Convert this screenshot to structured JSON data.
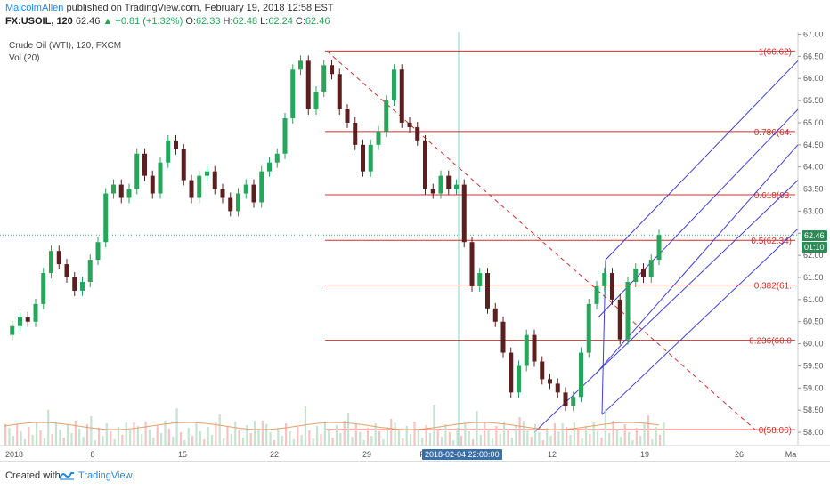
{
  "header": {
    "author": "MalcolmAllen",
    "published": "published on TradingView.com, February 19, 2018 12:58 EST",
    "symbol": "FX:USOIL, 120",
    "last": "62.46",
    "change": "+0.81 (+1.32%)",
    "open_label": "O:",
    "open": "62.33",
    "high_label": "H:",
    "high": "62.48",
    "low_label": "L:",
    "low": "62.24",
    "close_label": "C:",
    "close": "62.46"
  },
  "legend": {
    "title": "Crude Oil (WTI), 120, FXCM",
    "volume": "Vol (20)"
  },
  "price_tag": {
    "value": "62.46",
    "countdown": "01:10"
  },
  "crosshair_time": "2018-02-04 22:00:00",
  "footer": {
    "created": "Created with",
    "brand": "TradingView"
  },
  "colors": {
    "bull": "#26a65b",
    "bear": "#5b1f1f",
    "fib": "#d32f2f",
    "pitchfork": "#3f3fd6",
    "trend": "#d32f2f",
    "crosshair": "#7fd3d3",
    "volume_ma": "#e6a06b",
    "accent": "#1e88e5"
  },
  "chart_data": {
    "type": "candlestick",
    "ylim": [
      57.7,
      67.05
    ],
    "y_ticks": [
      "67.00",
      "66.50",
      "66.00",
      "65.50",
      "65.00",
      "64.50",
      "64.00",
      "63.50",
      "63.00",
      "62.50",
      "62.00",
      "61.50",
      "61.00",
      "60.50",
      "60.00",
      "59.50",
      "59.00",
      "58.50",
      "58.00"
    ],
    "x_ticks": [
      "2018",
      "8",
      "15",
      "22",
      "29",
      "F",
      "12",
      "19",
      "26",
      "Ma"
    ],
    "fib_levels": [
      {
        "label": "1(66.62)",
        "value": 66.62
      },
      {
        "label": "0.786(64.",
        "value": 64.8
      },
      {
        "label": "0.618(63.",
        "value": 63.37
      },
      {
        "label": "0.5(62.34)",
        "value": 62.34
      },
      {
        "label": "0.382(61.",
        "value": 61.33
      },
      {
        "label": "0.236(60.0",
        "value": 60.08
      },
      {
        "label": "0(58.06)",
        "value": 58.06
      }
    ],
    "close_path": [
      [
        0,
        60.2
      ],
      [
        1,
        60.4
      ],
      [
        2,
        60.6
      ],
      [
        3,
        60.5
      ],
      [
        4,
        60.9
      ],
      [
        5,
        61.6
      ],
      [
        6,
        62.1
      ],
      [
        7,
        61.8
      ],
      [
        8,
        61.5
      ],
      [
        9,
        61.2
      ],
      [
        10,
        61.4
      ],
      [
        11,
        61.9
      ],
      [
        12,
        62.3
      ],
      [
        13,
        63.4
      ],
      [
        14,
        63.6
      ],
      [
        15,
        63.3
      ],
      [
        16,
        63.5
      ],
      [
        17,
        64.3
      ],
      [
        18,
        63.8
      ],
      [
        19,
        63.4
      ],
      [
        20,
        64.1
      ],
      [
        21,
        64.6
      ],
      [
        22,
        64.4
      ],
      [
        23,
        63.7
      ],
      [
        24,
        63.3
      ],
      [
        25,
        63.8
      ],
      [
        26,
        63.9
      ],
      [
        27,
        63.5
      ],
      [
        28,
        63.3
      ],
      [
        29,
        63.0
      ],
      [
        30,
        63.4
      ],
      [
        31,
        63.6
      ],
      [
        32,
        63.2
      ],
      [
        33,
        63.9
      ],
      [
        34,
        64.1
      ],
      [
        35,
        64.3
      ],
      [
        36,
        65.1
      ],
      [
        37,
        66.2
      ],
      [
        38,
        66.4
      ],
      [
        39,
        65.3
      ],
      [
        40,
        65.7
      ],
      [
        41,
        66.3
      ],
      [
        42,
        66.1
      ],
      [
        43,
        65.3
      ],
      [
        44,
        65.0
      ],
      [
        45,
        64.5
      ],
      [
        46,
        63.9
      ],
      [
        47,
        64.5
      ],
      [
        48,
        64.8
      ],
      [
        49,
        65.5
      ],
      [
        50,
        66.2
      ],
      [
        51,
        65.0
      ],
      [
        52,
        64.9
      ],
      [
        53,
        64.6
      ],
      [
        54,
        63.5
      ],
      [
        55,
        63.4
      ],
      [
        56,
        63.8
      ],
      [
        57,
        63.5
      ],
      [
        58,
        63.6
      ],
      [
        59,
        62.3
      ],
      [
        60,
        61.3
      ],
      [
        61,
        61.6
      ],
      [
        62,
        60.8
      ],
      [
        63,
        60.5
      ],
      [
        64,
        59.8
      ],
      [
        65,
        58.9
      ],
      [
        66,
        59.5
      ],
      [
        67,
        60.2
      ],
      [
        68,
        59.6
      ],
      [
        69,
        59.2
      ],
      [
        70,
        59.1
      ],
      [
        71,
        58.9
      ],
      [
        72,
        58.6
      ],
      [
        73,
        58.8
      ],
      [
        74,
        59.8
      ],
      [
        75,
        60.9
      ],
      [
        76,
        61.3
      ],
      [
        77,
        61.6
      ],
      [
        78,
        61.0
      ],
      [
        79,
        60.1
      ],
      [
        80,
        61.4
      ],
      [
        81,
        61.7
      ],
      [
        82,
        61.5
      ],
      [
        83,
        61.9
      ],
      [
        84,
        62.46
      ]
    ]
  }
}
